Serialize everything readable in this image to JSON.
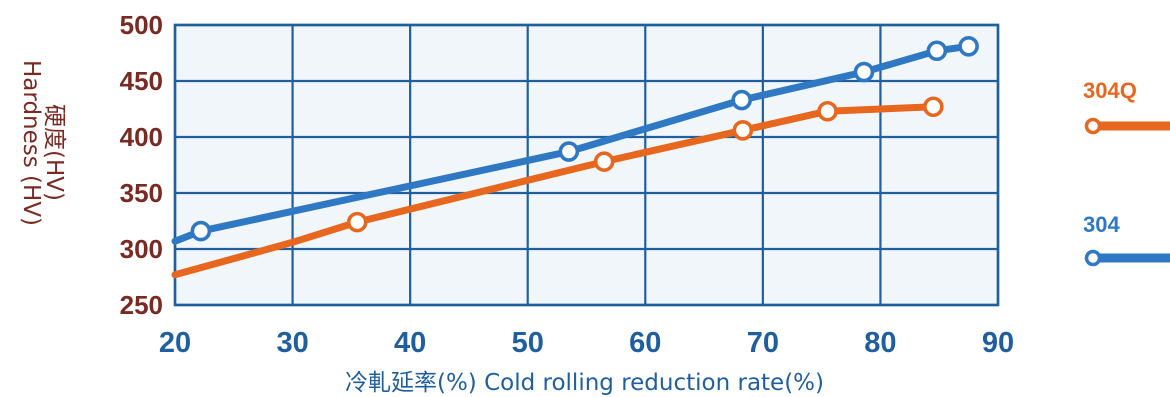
{
  "colors": {
    "plot_bg": "#f1f6fb",
    "grid": "#1f5f9f",
    "frame": "#1f5f9f",
    "y_tick": "#7a2a22",
    "x_tick": "#1f5f9f",
    "x_label": "#1f5f9f",
    "y_label": "#7a2a22",
    "series_304Q": "#e8671f",
    "series_304": "#2e78c4"
  },
  "chart_data": {
    "type": "line",
    "title": "",
    "xlabel": "冷軋延率(%) Cold rolling reduction rate(%)",
    "ylabel_cn": "硬度(HV)",
    "ylabel_en": "Hardness (HV)",
    "xlim": [
      20,
      90
    ],
    "ylim": [
      250,
      500
    ],
    "x_ticks": [
      "20",
      "30",
      "40",
      "50",
      "60",
      "70",
      "80",
      "90"
    ],
    "y_ticks": [
      "500",
      "450",
      "400",
      "350",
      "300",
      "250"
    ],
    "grid": true,
    "legend_position": "right",
    "series": [
      {
        "name": "304Q",
        "color": "#e8671f",
        "line": [
          [
            20,
            277
          ],
          [
            30,
            306
          ],
          [
            35.5,
            324
          ],
          [
            56.5,
            378
          ],
          [
            68.3,
            406
          ],
          [
            75.5,
            423
          ],
          [
            84.5,
            427
          ]
        ],
        "markers": [
          [
            35.5,
            324
          ],
          [
            56.5,
            378
          ],
          [
            68.3,
            406
          ],
          [
            75.5,
            423
          ],
          [
            84.5,
            427
          ]
        ]
      },
      {
        "name": "304",
        "color": "#2e78c4",
        "line": [
          [
            20,
            307
          ],
          [
            22.2,
            316
          ],
          [
            53.5,
            387
          ],
          [
            68.2,
            433
          ],
          [
            78.6,
            458
          ],
          [
            84.8,
            477
          ],
          [
            87.5,
            481
          ]
        ],
        "markers": [
          [
            22.2,
            316
          ],
          [
            53.5,
            387
          ],
          [
            68.2,
            433
          ],
          [
            78.6,
            458
          ],
          [
            84.8,
            477
          ],
          [
            87.5,
            481
          ]
        ]
      }
    ]
  }
}
